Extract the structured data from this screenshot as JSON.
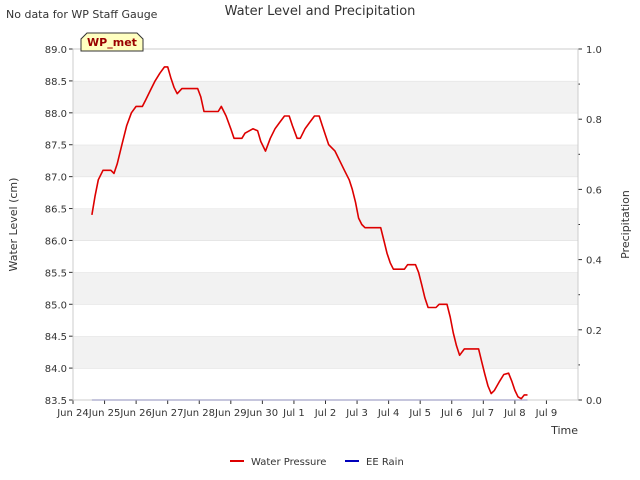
{
  "chart_data": {
    "type": "line",
    "title": "Water Level and Precipitation",
    "note": "No data for WP Staff Gauge",
    "station_label": "WP_met",
    "xlabel": "Time",
    "ylabel_left": "Water Level (cm)",
    "ylabel_right": "Precipitation",
    "x_range": [
      0,
      16
    ],
    "y_left_range": [
      83.5,
      89.0
    ],
    "y_right_range": [
      0.0,
      1.0
    ],
    "x_ticks": [
      {
        "v": 0,
        "label": "Jun 24"
      },
      {
        "v": 1,
        "label": "Jun 25"
      },
      {
        "v": 2,
        "label": "Jun 26"
      },
      {
        "v": 3,
        "label": "Jun 27"
      },
      {
        "v": 4,
        "label": "Jun 28"
      },
      {
        "v": 5,
        "label": "Jun 29"
      },
      {
        "v": 6,
        "label": "Jun 30"
      },
      {
        "v": 7,
        "label": "Jul 1"
      },
      {
        "v": 8,
        "label": "Jul 2"
      },
      {
        "v": 9,
        "label": "Jul 3"
      },
      {
        "v": 10,
        "label": "Jul 4"
      },
      {
        "v": 11,
        "label": "Jul 5"
      },
      {
        "v": 12,
        "label": "Jul 6"
      },
      {
        "v": 13,
        "label": "Jul 7"
      },
      {
        "v": 14,
        "label": "Jul 8"
      },
      {
        "v": 15,
        "label": "Jul 9"
      }
    ],
    "y_left_ticks": [
      "83.5",
      "84.0",
      "84.5",
      "85.0",
      "85.5",
      "86.0",
      "86.5",
      "87.0",
      "87.5",
      "88.0",
      "88.5",
      "89.0"
    ],
    "y_right_ticks": [
      "0.0",
      "0.2",
      "0.4",
      "0.6",
      "0.8",
      "1.0"
    ],
    "series": [
      {
        "name": "Water Pressure",
        "color": "#dd0000",
        "axis": "left",
        "points": [
          [
            0.6,
            86.4
          ],
          [
            0.7,
            86.7
          ],
          [
            0.8,
            86.95
          ],
          [
            0.95,
            87.1
          ],
          [
            1.2,
            87.1
          ],
          [
            1.3,
            87.05
          ],
          [
            1.4,
            87.2
          ],
          [
            1.55,
            87.5
          ],
          [
            1.7,
            87.8
          ],
          [
            1.85,
            88.0
          ],
          [
            2.0,
            88.1
          ],
          [
            2.2,
            88.1
          ],
          [
            2.3,
            88.2
          ],
          [
            2.45,
            88.35
          ],
          [
            2.6,
            88.5
          ],
          [
            2.75,
            88.62
          ],
          [
            2.9,
            88.72
          ],
          [
            3.0,
            88.72
          ],
          [
            3.1,
            88.55
          ],
          [
            3.2,
            88.4
          ],
          [
            3.3,
            88.3
          ],
          [
            3.45,
            88.38
          ],
          [
            3.95,
            88.38
          ],
          [
            4.05,
            88.25
          ],
          [
            4.15,
            88.02
          ],
          [
            4.6,
            88.02
          ],
          [
            4.7,
            88.1
          ],
          [
            4.85,
            87.95
          ],
          [
            5.0,
            87.75
          ],
          [
            5.1,
            87.6
          ],
          [
            5.35,
            87.6
          ],
          [
            5.45,
            87.68
          ],
          [
            5.7,
            87.75
          ],
          [
            5.85,
            87.72
          ],
          [
            5.95,
            87.55
          ],
          [
            6.1,
            87.4
          ],
          [
            6.25,
            87.6
          ],
          [
            6.4,
            87.75
          ],
          [
            6.55,
            87.85
          ],
          [
            6.7,
            87.95
          ],
          [
            6.85,
            87.95
          ],
          [
            6.95,
            87.8
          ],
          [
            7.1,
            87.6
          ],
          [
            7.2,
            87.6
          ],
          [
            7.35,
            87.75
          ],
          [
            7.5,
            87.85
          ],
          [
            7.65,
            87.95
          ],
          [
            7.8,
            87.95
          ],
          [
            7.9,
            87.8
          ],
          [
            8.0,
            87.65
          ],
          [
            8.1,
            87.5
          ],
          [
            8.3,
            87.4
          ],
          [
            8.45,
            87.25
          ],
          [
            8.6,
            87.1
          ],
          [
            8.75,
            86.95
          ],
          [
            8.85,
            86.8
          ],
          [
            8.95,
            86.6
          ],
          [
            9.05,
            86.35
          ],
          [
            9.15,
            86.25
          ],
          [
            9.25,
            86.2
          ],
          [
            9.75,
            86.2
          ],
          [
            9.85,
            86.0
          ],
          [
            9.95,
            85.8
          ],
          [
            10.05,
            85.65
          ],
          [
            10.15,
            85.55
          ],
          [
            10.5,
            85.55
          ],
          [
            10.6,
            85.62
          ],
          [
            10.85,
            85.62
          ],
          [
            10.95,
            85.5
          ],
          [
            11.05,
            85.3
          ],
          [
            11.15,
            85.1
          ],
          [
            11.25,
            84.95
          ],
          [
            11.5,
            84.95
          ],
          [
            11.6,
            85.0
          ],
          [
            11.85,
            85.0
          ],
          [
            11.95,
            84.8
          ],
          [
            12.05,
            84.55
          ],
          [
            12.15,
            84.35
          ],
          [
            12.25,
            84.2
          ],
          [
            12.4,
            84.3
          ],
          [
            12.85,
            84.3
          ],
          [
            12.95,
            84.1
          ],
          [
            13.05,
            83.9
          ],
          [
            13.15,
            83.72
          ],
          [
            13.25,
            83.6
          ],
          [
            13.35,
            83.65
          ],
          [
            13.5,
            83.78
          ],
          [
            13.65,
            83.9
          ],
          [
            13.8,
            83.92
          ],
          [
            13.9,
            83.8
          ],
          [
            14.0,
            83.65
          ],
          [
            14.1,
            83.55
          ],
          [
            14.2,
            83.52
          ],
          [
            14.3,
            83.58
          ],
          [
            14.4,
            83.58
          ]
        ]
      },
      {
        "name": "EE Rain",
        "color": "#0000bb",
        "axis": "right",
        "points": [
          [
            0.6,
            0.0
          ],
          [
            14.4,
            0.0
          ]
        ]
      }
    ],
    "legend_position": "bottom-center",
    "grid": "horizontal-bands"
  }
}
